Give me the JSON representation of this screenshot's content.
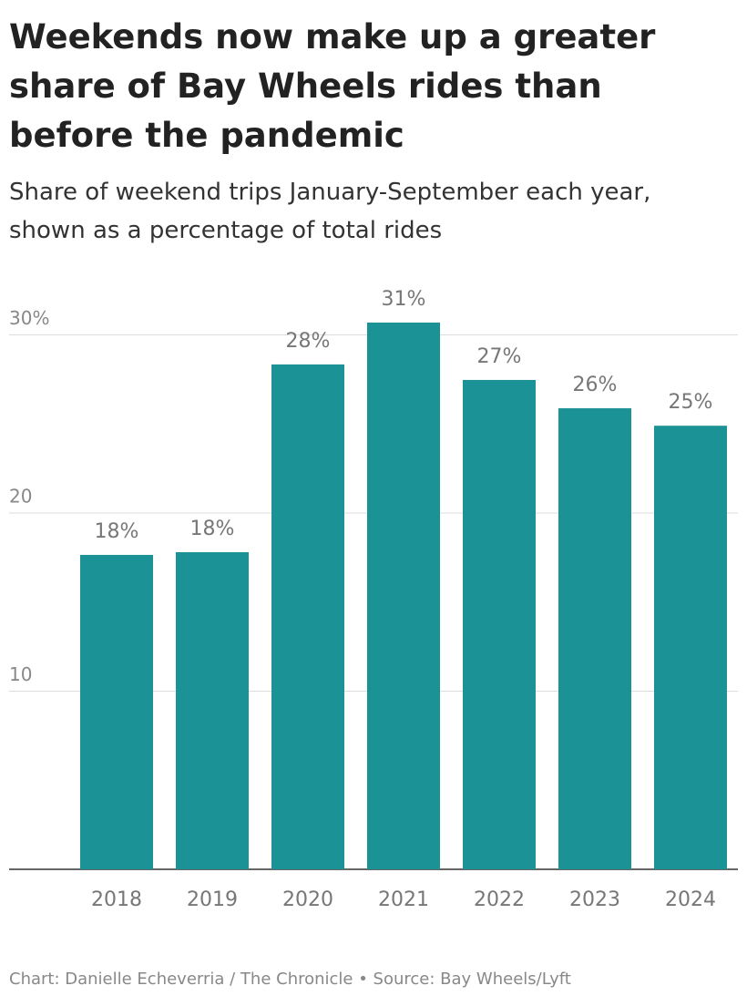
{
  "chart_data": {
    "type": "bar",
    "title": "Weekends now make up a greater share of Bay Wheels rides than before the pandemic",
    "subtitle": "Share of weekend trips January-September each year, shown as a percentage of total rides",
    "footer": "Chart: Danielle Echeverria / The Chronicle • Source: Bay Wheels/Lyft",
    "categories": [
      "2018",
      "2019",
      "2020",
      "2021",
      "2022",
      "2023",
      "2024"
    ],
    "values": [
      17.65,
      17.8,
      28.34,
      30.69,
      27.47,
      25.88,
      24.9
    ],
    "value_labels": [
      "18%",
      "18%",
      "28%",
      "31%",
      "27%",
      "26%",
      "25%"
    ],
    "color": "#1a9296",
    "ylim": [
      0,
      32
    ],
    "yticks": [
      10,
      20,
      {
        "value": 30,
        "label": "30%"
      }
    ],
    "grid": true
  }
}
